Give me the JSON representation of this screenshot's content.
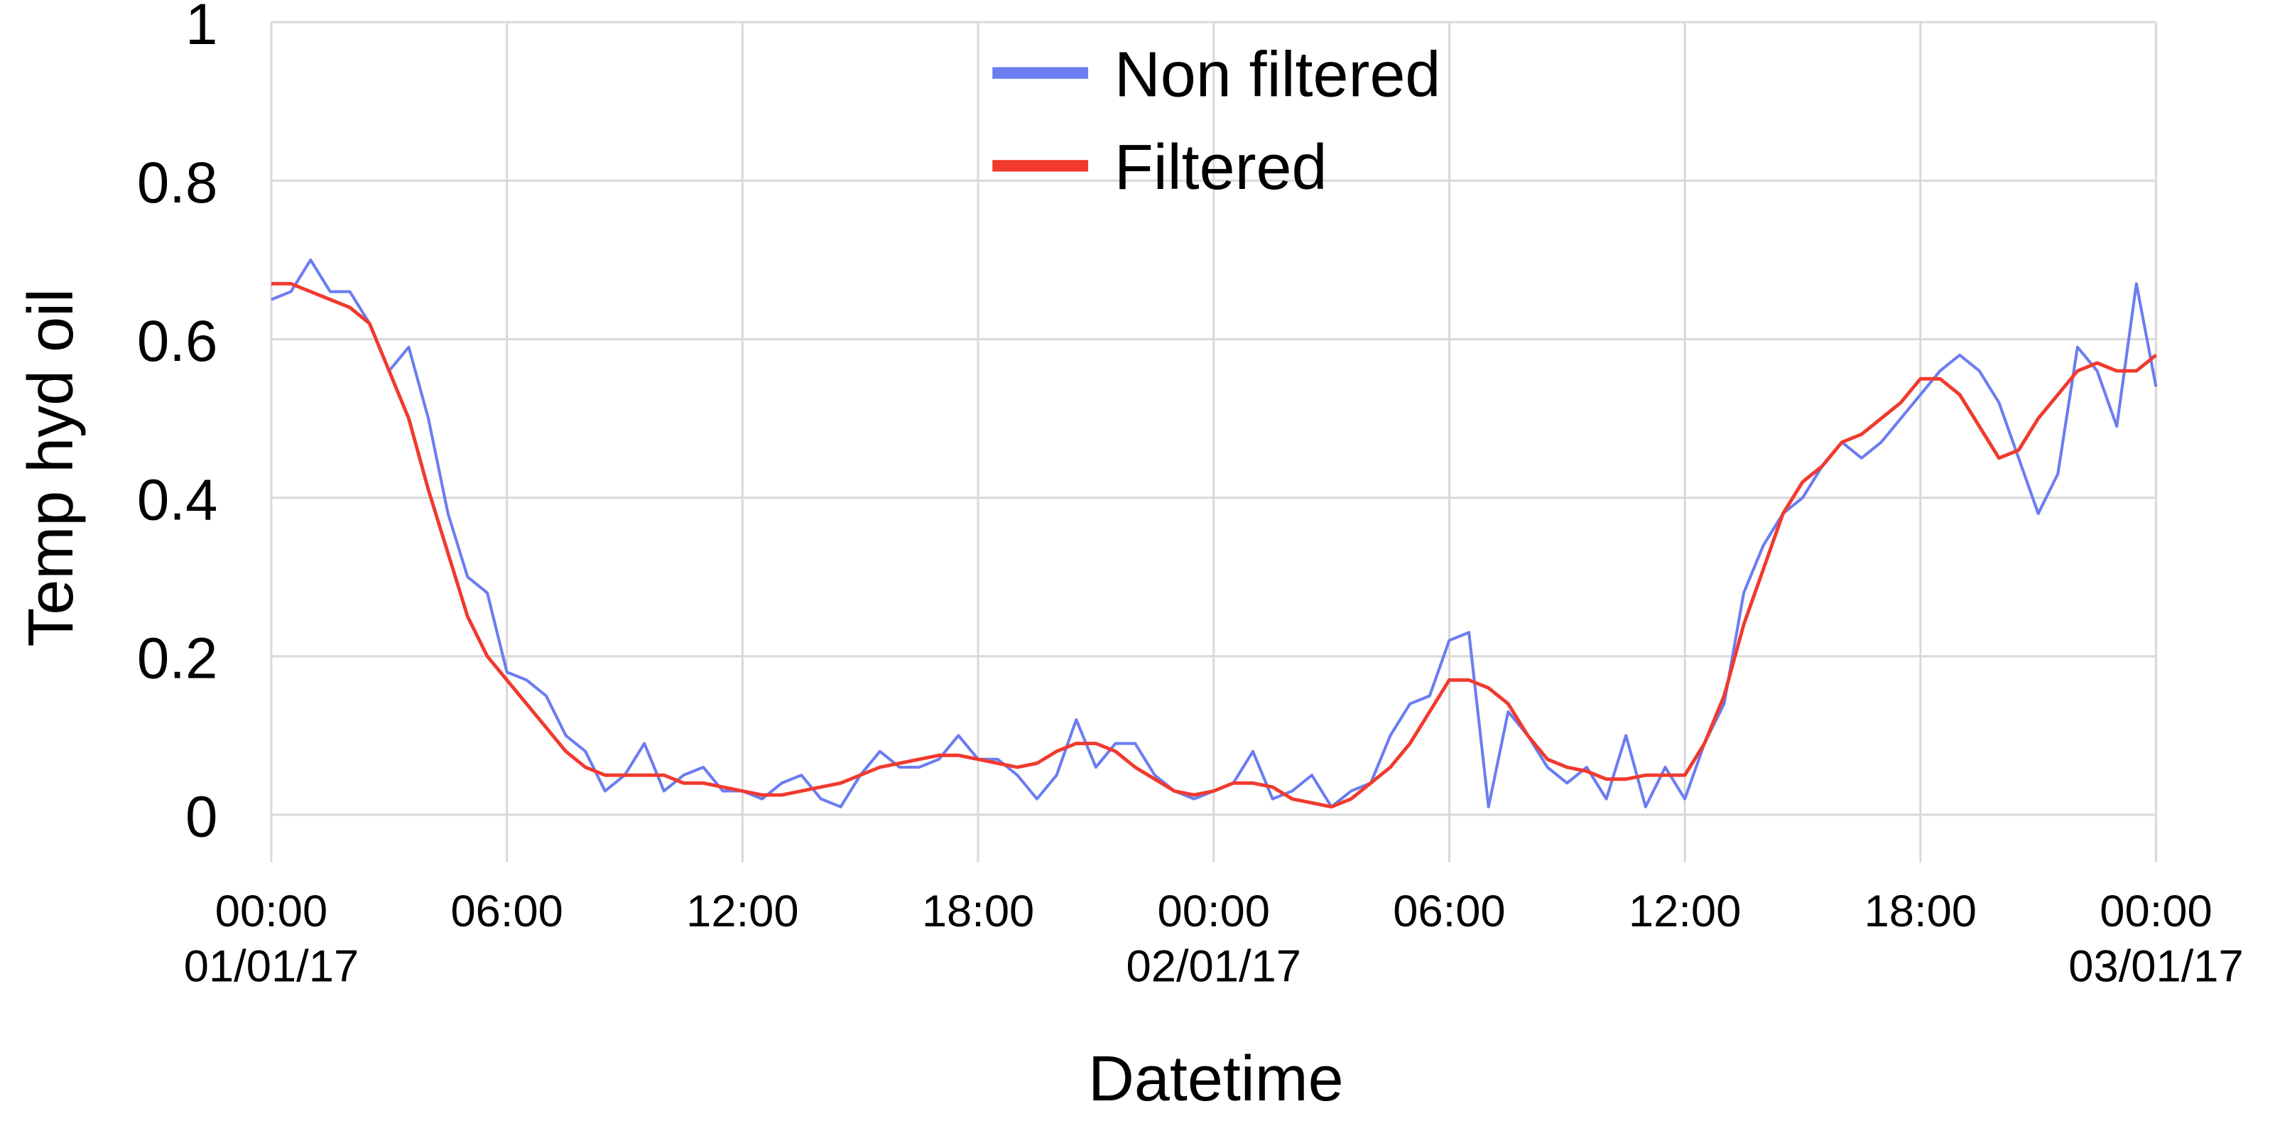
{
  "chart_data": {
    "type": "line",
    "x_label": "Datetime",
    "y_label": "Temp hyd oil",
    "x": [
      "01/01/17 00:00",
      "01/01/17 00:30",
      "01/01/17 01:00",
      "01/01/17 01:30",
      "01/01/17 02:00",
      "01/01/17 02:30",
      "01/01/17 03:00",
      "01/01/17 03:30",
      "01/01/17 04:00",
      "01/01/17 04:30",
      "01/01/17 05:00",
      "01/01/17 05:30",
      "01/01/17 06:00",
      "01/01/17 06:30",
      "01/01/17 07:00",
      "01/01/17 07:30",
      "01/01/17 08:00",
      "01/01/17 08:30",
      "01/01/17 09:00",
      "01/01/17 09:30",
      "01/01/17 10:00",
      "01/01/17 10:30",
      "01/01/17 11:00",
      "01/01/17 11:30",
      "01/01/17 12:00",
      "01/01/17 12:30",
      "01/01/17 13:00",
      "01/01/17 13:30",
      "01/01/17 14:00",
      "01/01/17 14:30",
      "01/01/17 15:00",
      "01/01/17 15:30",
      "01/01/17 16:00",
      "01/01/17 16:30",
      "01/01/17 17:00",
      "01/01/17 17:30",
      "01/01/17 18:00",
      "01/01/17 18:30",
      "01/01/17 19:00",
      "01/01/17 19:30",
      "01/01/17 20:00",
      "01/01/17 20:30",
      "01/01/17 21:00",
      "01/01/17 21:30",
      "01/01/17 22:00",
      "01/01/17 22:30",
      "01/01/17 23:00",
      "01/01/17 23:30",
      "02/01/17 00:00",
      "02/01/17 00:30",
      "02/01/17 01:00",
      "02/01/17 01:30",
      "02/01/17 02:00",
      "02/01/17 02:30",
      "02/01/17 03:00",
      "02/01/17 03:30",
      "02/01/17 04:00",
      "02/01/17 04:30",
      "02/01/17 05:00",
      "02/01/17 05:30",
      "02/01/17 06:00",
      "02/01/17 06:30",
      "02/01/17 07:00",
      "02/01/17 07:30",
      "02/01/17 08:00",
      "02/01/17 08:30",
      "02/01/17 09:00",
      "02/01/17 09:30",
      "02/01/17 10:00",
      "02/01/17 10:30",
      "02/01/17 11:00",
      "02/01/17 11:30",
      "02/01/17 12:00",
      "02/01/17 12:30",
      "02/01/17 13:00",
      "02/01/17 13:30",
      "02/01/17 14:00",
      "02/01/17 14:30",
      "02/01/17 15:00",
      "02/01/17 15:30",
      "02/01/17 16:00",
      "02/01/17 16:30",
      "02/01/17 17:00",
      "02/01/17 17:30",
      "02/01/17 18:00",
      "02/01/17 18:30",
      "02/01/17 19:00",
      "02/01/17 19:30",
      "02/01/17 20:00",
      "02/01/17 20:30",
      "02/01/17 21:00",
      "02/01/17 21:30",
      "02/01/17 22:00",
      "02/01/17 22:30",
      "02/01/17 23:00",
      "02/01/17 23:30",
      "03/01/17 00:00"
    ],
    "series": [
      {
        "name": "Non filtered",
        "color": "#6b7df0",
        "values": [
          0.65,
          0.66,
          0.7,
          0.66,
          0.66,
          0.62,
          0.56,
          0.59,
          0.5,
          0.38,
          0.3,
          0.28,
          0.18,
          0.17,
          0.15,
          0.1,
          0.08,
          0.03,
          0.05,
          0.09,
          0.03,
          0.05,
          0.06,
          0.03,
          0.03,
          0.02,
          0.04,
          0.05,
          0.02,
          0.01,
          0.05,
          0.08,
          0.06,
          0.06,
          0.07,
          0.1,
          0.07,
          0.07,
          0.05,
          0.02,
          0.05,
          0.12,
          0.06,
          0.09,
          0.09,
          0.05,
          0.03,
          0.02,
          0.03,
          0.04,
          0.08,
          0.02,
          0.03,
          0.05,
          0.01,
          0.03,
          0.04,
          0.1,
          0.14,
          0.15,
          0.22,
          0.23,
          0.01,
          0.13,
          0.1,
          0.06,
          0.04,
          0.06,
          0.02,
          0.1,
          0.01,
          0.06,
          0.02,
          0.09,
          0.14,
          0.28,
          0.34,
          0.38,
          0.4,
          0.44,
          0.47,
          0.45,
          0.47,
          0.5,
          0.53,
          0.56,
          0.58,
          0.56,
          0.52,
          0.45,
          0.38,
          0.43,
          0.59,
          0.56,
          0.49,
          0.67,
          0.54
        ]
      },
      {
        "name": "Filtered",
        "color": "#f03a2e",
        "values": [
          0.67,
          0.67,
          0.66,
          0.65,
          0.64,
          0.62,
          0.56,
          0.5,
          0.41,
          0.33,
          0.25,
          0.2,
          0.17,
          0.14,
          0.11,
          0.08,
          0.06,
          0.05,
          0.05,
          0.05,
          0.05,
          0.04,
          0.04,
          0.035,
          0.03,
          0.025,
          0.025,
          0.03,
          0.035,
          0.04,
          0.05,
          0.06,
          0.065,
          0.07,
          0.075,
          0.075,
          0.07,
          0.065,
          0.06,
          0.065,
          0.08,
          0.09,
          0.09,
          0.08,
          0.06,
          0.045,
          0.03,
          0.025,
          0.03,
          0.04,
          0.04,
          0.035,
          0.02,
          0.015,
          0.01,
          0.02,
          0.04,
          0.06,
          0.09,
          0.13,
          0.17,
          0.17,
          0.16,
          0.14,
          0.1,
          0.07,
          0.06,
          0.055,
          0.045,
          0.045,
          0.05,
          0.05,
          0.05,
          0.09,
          0.15,
          0.24,
          0.31,
          0.38,
          0.42,
          0.44,
          0.47,
          0.48,
          0.5,
          0.52,
          0.55,
          0.55,
          0.53,
          0.49,
          0.45,
          0.46,
          0.5,
          0.53,
          0.56,
          0.57,
          0.56,
          0.56,
          0.58
        ]
      }
    ],
    "xlim": [
      "01/01/17 00:00",
      "03/01/17 00:00"
    ],
    "xticks": [
      {
        "value": "01/01/17 00:00",
        "label": "00:00 01/01/17"
      },
      {
        "value": "01/01/17 06:00",
        "label": "06:00"
      },
      {
        "value": "01/01/17 12:00",
        "label": "12:00"
      },
      {
        "value": "01/01/17 18:00",
        "label": "18:00"
      },
      {
        "value": "02/01/17 00:00",
        "label": "00:00 02/01/17"
      },
      {
        "value": "02/01/17 06:00",
        "label": "06:00"
      },
      {
        "value": "02/01/17 12:00",
        "label": "12:00"
      },
      {
        "value": "02/01/17 18:00",
        "label": "18:00"
      },
      {
        "value": "03/01/17 00:00",
        "label": "00:00 03/01/17"
      }
    ],
    "ylim": [
      -0.06,
      1.0
    ],
    "yticks": [
      0,
      0.2,
      0.4,
      0.6,
      0.8,
      1
    ],
    "grid": true,
    "legend": "top"
  }
}
